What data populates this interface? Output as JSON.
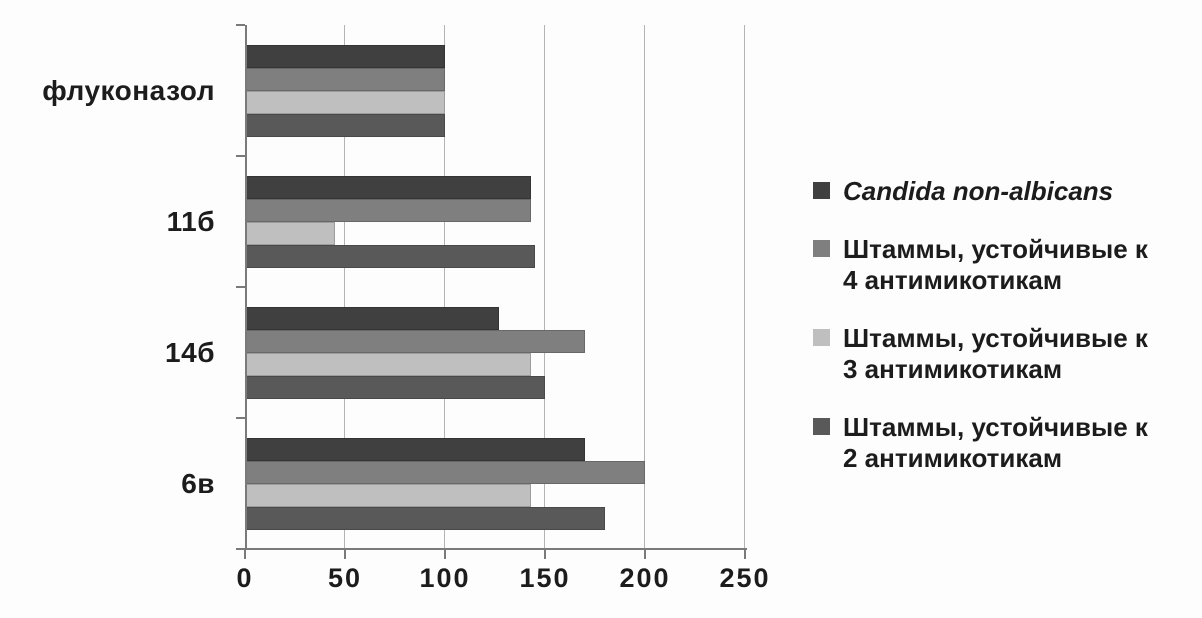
{
  "figure": {
    "background": "#fdfdfd",
    "text_color": "#1c1c1c",
    "gridline_color": "#b3b3b3",
    "axis_color": "#7a7a7a"
  },
  "chart_data": {
    "type": "bar",
    "orientation": "horizontal",
    "categories": [
      "флуконазол",
      "11б",
      "14б",
      "6в"
    ],
    "series": [
      {
        "name": "Candida non-albicans",
        "color": "#404040",
        "italic": true,
        "values": [
          100,
          143,
          127,
          170
        ]
      },
      {
        "name": "Штаммы, устойчивые к 4 антимикотикам",
        "color": "#7f7f7f",
        "italic": false,
        "values": [
          100,
          143,
          170,
          200
        ]
      },
      {
        "name": "Штаммы, устойчивые к 3 антимикотикам",
        "color": "#bfbfbf",
        "italic": false,
        "values": [
          100,
          45,
          143,
          143
        ]
      },
      {
        "name": "Штаммы, устойчивые к 2 антимикотикам",
        "color": "#595959",
        "italic": false,
        "values": [
          100,
          145,
          150,
          180
        ]
      }
    ],
    "x_ticks": [
      0,
      50,
      100,
      150,
      200,
      250
    ],
    "xlim": [
      0,
      250
    ],
    "grid": "vertical",
    "legend_position": "right"
  }
}
